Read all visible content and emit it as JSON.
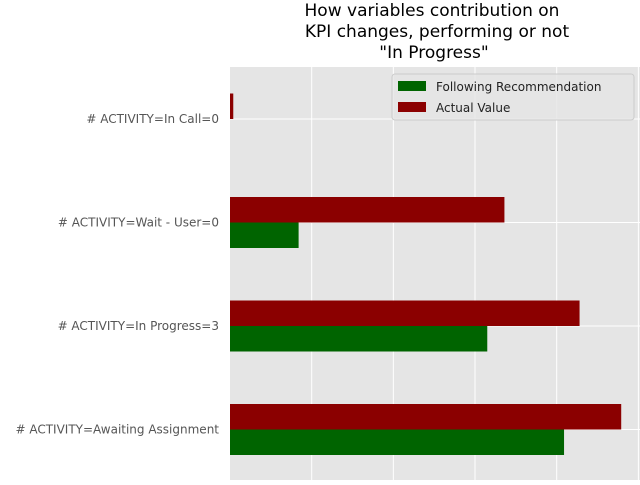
{
  "chart_data": {
    "type": "bar",
    "orientation": "horizontal",
    "title_lines": [
      "How variables contribution on",
      "KPI changes, performing or not",
      "\"In Progress\""
    ],
    "xlabel": "",
    "ylabel": "",
    "categories": [
      "# ACTIVITY=In Call=0",
      "# ACTIVITY=Wait - User=0",
      "# ACTIVITY=In Progress=3",
      "# ACTIVITY=Awaiting Assignment"
    ],
    "series": [
      {
        "name": "Following Recommendation",
        "color": "#006400",
        "values": [
          0.0,
          0.0084,
          0.0315,
          0.0409
        ]
      },
      {
        "name": "Actual Value",
        "color": "#8b0000",
        "values": [
          0.0004,
          0.0336,
          0.0428,
          0.0479
        ]
      }
    ],
    "xlim": [
      0,
      0.0502
    ],
    "x_gridlines": [
      0.01,
      0.02,
      0.03,
      0.04,
      0.05
    ],
    "grid": true,
    "background": "#e5e5e5",
    "grid_color": "#ffffff",
    "legend_position": "top-right"
  }
}
